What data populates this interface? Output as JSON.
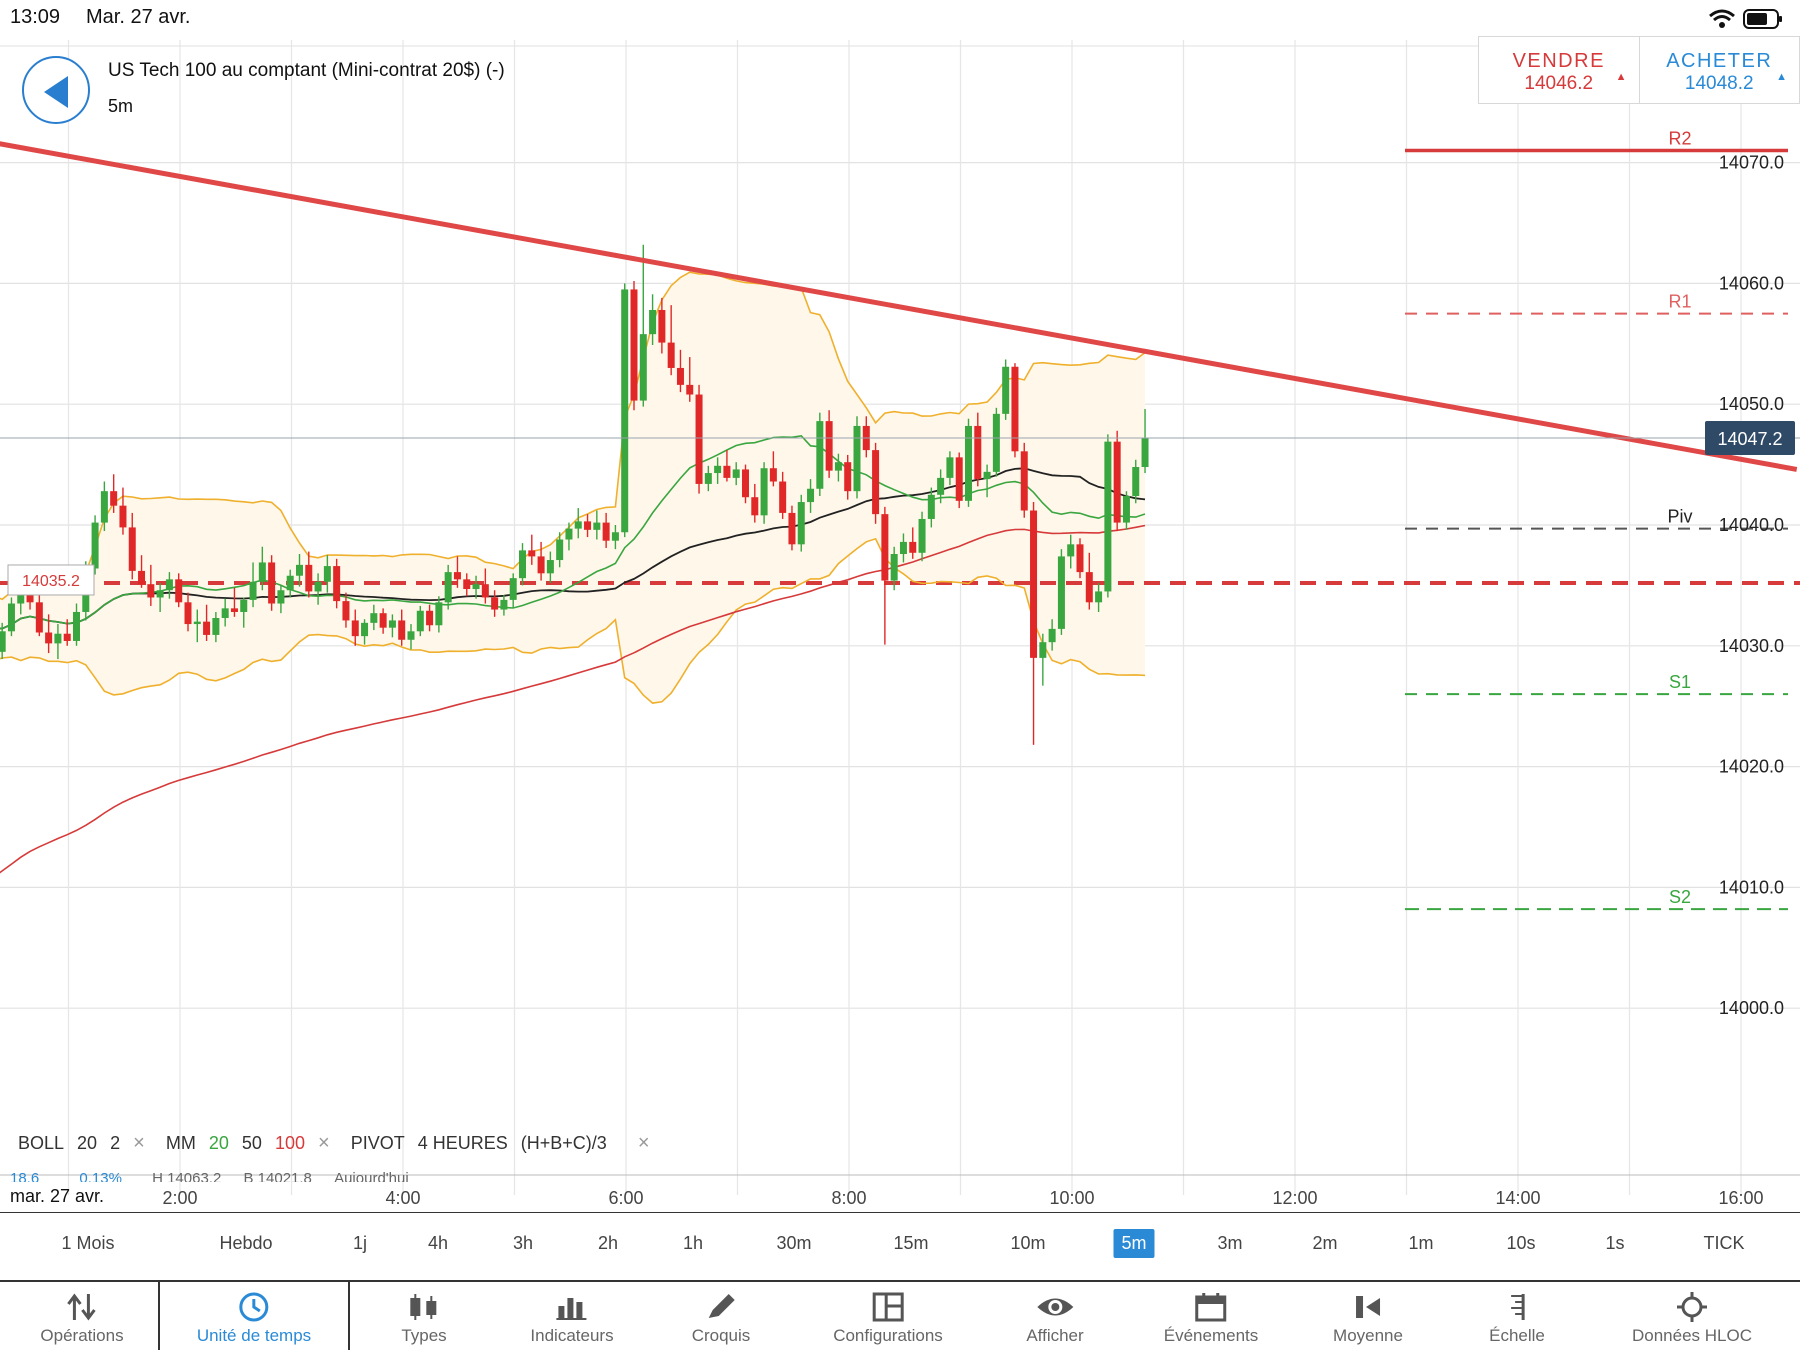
{
  "status_bar": {
    "time": "13:09",
    "date": "Mar. 27 avr."
  },
  "header": {
    "instrument": "US Tech 100 au comptant (Mini-contrat 20$) (-)",
    "timeframe": "5m"
  },
  "trade": {
    "sell_label": "VENDRE",
    "sell_price": "14046.2",
    "buy_label": "ACHETER",
    "buy_price": "14048.2"
  },
  "chart_data": {
    "type": "candlestick",
    "y_ticks": [
      "14070.0",
      "14060.0",
      "14050.0",
      "14040.0",
      "14030.0",
      "14020.0",
      "14010.0",
      "14000.0"
    ],
    "x_ticks": [
      "2:00",
      "4:00",
      "6:00",
      "8:00",
      "10:00",
      "12:00",
      "14:00",
      "16:00"
    ],
    "date_label": "mar. 27 avr.",
    "current_price": "14047.2",
    "current_price_value": 14047.2,
    "horizontal_line_label": "14035.2",
    "horizontal_line_value": 14035.2,
    "pivot_levels": [
      {
        "name": "R2",
        "value": 14071.0,
        "color": "#d63a3a",
        "style": "solid"
      },
      {
        "name": "R1",
        "value": 14057.5,
        "color": "#e06060",
        "style": "dashed"
      },
      {
        "name": "Piv",
        "value": 14039.7,
        "color": "#555555",
        "style": "dashed"
      },
      {
        "name": "S1",
        "value": 14026.0,
        "color": "#3aa640",
        "style": "dashed"
      },
      {
        "name": "S2",
        "value": 14008.2,
        "color": "#3aa640",
        "style": "dashed"
      }
    ],
    "trendline": {
      "from": [
        "0:00",
        14072.2
      ],
      "to": [
        "16:30",
        14044.6
      ],
      "color": "#e04848"
    },
    "candles": [
      [
        14031.2,
        14033.1,
        14029.8,
        14032.4
      ],
      [
        14032.4,
        14034.2,
        14031.0,
        14033.0
      ],
      [
        14033.0,
        14033.8,
        14030.1,
        14031.0
      ],
      [
        14031.0,
        14032.5,
        14028.8,
        14029.5
      ],
      [
        14029.5,
        14031.9,
        14028.9,
        14031.2
      ],
      [
        14031.2,
        14034.0,
        14030.8,
        14033.5
      ],
      [
        14033.5,
        14035.8,
        14032.6,
        14035.2
      ],
      [
        14035.2,
        14036.0,
        14033.0,
        14033.6
      ],
      [
        14033.6,
        14034.2,
        14030.8,
        14031.1
      ],
      [
        14031.1,
        14032.6,
        14029.4,
        14030.2
      ],
      [
        14030.2,
        14031.8,
        14028.9,
        14031.0
      ],
      [
        14031.0,
        14032.2,
        14030.0,
        14030.4
      ],
      [
        14030.4,
        14033.5,
        14030.0,
        14032.8
      ],
      [
        14032.8,
        14037.0,
        14032.1,
        14036.4
      ],
      [
        14036.4,
        14040.8,
        14035.9,
        14040.2
      ],
      [
        14040.2,
        14043.6,
        14039.5,
        14042.8
      ],
      [
        14042.8,
        14044.2,
        14041.0,
        14041.6
      ],
      [
        14041.6,
        14043.1,
        14039.2,
        14039.8
      ],
      [
        14039.8,
        14041.0,
        14035.5,
        14036.2
      ],
      [
        14036.2,
        14037.5,
        14034.8,
        14035.1
      ],
      [
        14035.1,
        14036.7,
        14033.3,
        14034.0
      ],
      [
        14034.0,
        14035.2,
        14032.8,
        14034.6
      ],
      [
        14034.6,
        14036.1,
        14033.9,
        14035.5
      ],
      [
        14035.5,
        14036.0,
        14033.2,
        14033.6
      ],
      [
        14033.6,
        14034.4,
        14031.2,
        14031.8
      ],
      [
        14031.8,
        14033.0,
        14030.3,
        14032.0
      ],
      [
        14032.0,
        14033.4,
        14030.4,
        14030.9
      ],
      [
        14030.9,
        14032.8,
        14030.3,
        14032.3
      ],
      [
        14032.3,
        14033.9,
        14031.6,
        14033.1
      ],
      [
        14033.1,
        14034.8,
        14032.4,
        14032.8
      ],
      [
        14032.8,
        14034.0,
        14031.5,
        14033.8
      ],
      [
        14033.8,
        14036.9,
        14033.2,
        14035.3
      ],
      [
        14035.3,
        14038.2,
        14034.6,
        14036.9
      ],
      [
        14036.9,
        14037.5,
        14032.9,
        14033.5
      ],
      [
        14033.5,
        14035.0,
        14032.7,
        14034.6
      ],
      [
        14034.6,
        14036.3,
        14034.0,
        14035.8
      ],
      [
        14035.8,
        14037.6,
        14034.9,
        14036.7
      ],
      [
        14036.7,
        14037.8,
        14034.0,
        14034.5
      ],
      [
        14034.5,
        14036.0,
        14033.4,
        14035.3
      ],
      [
        14035.3,
        14037.5,
        14034.4,
        14036.6
      ],
      [
        14036.6,
        14037.2,
        14033.1,
        14033.7
      ],
      [
        14033.7,
        14034.4,
        14031.5,
        14032.1
      ],
      [
        14032.1,
        14033.0,
        14030.0,
        14030.8
      ],
      [
        14030.8,
        14032.2,
        14030.1,
        14031.9
      ],
      [
        14031.9,
        14033.4,
        14031.3,
        14032.7
      ],
      [
        14032.7,
        14033.1,
        14031.0,
        14031.5
      ],
      [
        14031.5,
        14032.6,
        14030.7,
        14032.1
      ],
      [
        14032.1,
        14033.0,
        14030.0,
        14030.5
      ],
      [
        14030.5,
        14031.8,
        14029.7,
        14031.2
      ],
      [
        14031.2,
        14033.3,
        14030.8,
        14032.9
      ],
      [
        14032.9,
        14033.4,
        14031.2,
        14031.7
      ],
      [
        14031.7,
        14034.1,
        14031.1,
        14033.6
      ],
      [
        14033.6,
        14036.7,
        14033.0,
        14036.1
      ],
      [
        14036.1,
        14037.4,
        14034.8,
        14035.5
      ],
      [
        14035.5,
        14036.0,
        14034.1,
        14034.7
      ],
      [
        14034.7,
        14035.8,
        14033.9,
        14035.1
      ],
      [
        14035.1,
        14036.4,
        14033.5,
        14034.0
      ],
      [
        14034.0,
        14034.6,
        14032.4,
        14033.0
      ],
      [
        14033.0,
        14034.2,
        14032.5,
        14033.8
      ],
      [
        14033.8,
        14036.0,
        14033.1,
        14035.6
      ],
      [
        14035.6,
        14038.5,
        14035.0,
        14037.9
      ],
      [
        14037.9,
        14039.2,
        14036.7,
        14037.4
      ],
      [
        14037.4,
        14038.6,
        14035.4,
        14036.0
      ],
      [
        14036.0,
        14037.8,
        14035.2,
        14037.1
      ],
      [
        14037.1,
        14039.4,
        14036.5,
        14038.8
      ],
      [
        14038.8,
        14040.2,
        14037.9,
        14039.7
      ],
      [
        14039.7,
        14041.4,
        14038.9,
        14040.3
      ],
      [
        14040.3,
        14040.9,
        14039.0,
        14039.6
      ],
      [
        14039.6,
        14041.2,
        14038.8,
        14040.2
      ],
      [
        14040.2,
        14041.0,
        14038.1,
        14038.7
      ],
      [
        14038.7,
        14040.0,
        14038.0,
        14039.4
      ],
      [
        14039.4,
        14060.0,
        14039.0,
        14059.5
      ],
      [
        14059.5,
        14060.2,
        14049.5,
        14050.3
      ],
      [
        14050.3,
        14063.2,
        14049.8,
        14055.8
      ],
      [
        14055.8,
        14059.1,
        14054.9,
        14057.8
      ],
      [
        14057.8,
        14058.8,
        14054.2,
        14055.1
      ],
      [
        14055.1,
        14058.2,
        14052.4,
        14053.0
      ],
      [
        14053.0,
        14054.5,
        14051.0,
        14051.6
      ],
      [
        14051.6,
        14053.9,
        14050.2,
        14050.8
      ],
      [
        14050.8,
        14051.6,
        14042.6,
        14043.4
      ],
      [
        14043.4,
        14044.9,
        14042.8,
        14044.3
      ],
      [
        14044.3,
        14045.6,
        14043.4,
        14044.9
      ],
      [
        14044.9,
        14046.2,
        14043.6,
        14043.9
      ],
      [
        14043.9,
        14045.2,
        14043.3,
        14044.6
      ],
      [
        14044.6,
        14045.0,
        14041.8,
        14042.3
      ],
      [
        14042.3,
        14043.4,
        14040.2,
        14040.8
      ],
      [
        14040.8,
        14045.2,
        14040.1,
        14044.7
      ],
      [
        14044.7,
        14046.1,
        14043.2,
        14043.6
      ],
      [
        14043.6,
        14044.4,
        14040.5,
        14041.0
      ],
      [
        14041.0,
        14041.6,
        14037.9,
        14038.4
      ],
      [
        14038.4,
        14042.5,
        14037.8,
        14041.9
      ],
      [
        14041.9,
        14043.8,
        14041.0,
        14043.0
      ],
      [
        14043.0,
        14049.3,
        14042.4,
        14048.6
      ],
      [
        14048.6,
        14049.5,
        14043.9,
        14044.5
      ],
      [
        14044.5,
        14045.9,
        14043.6,
        14045.2
      ],
      [
        14045.2,
        14045.8,
        14042.1,
        14042.8
      ],
      [
        14042.8,
        14049.0,
        14042.2,
        14048.2
      ],
      [
        14048.2,
        14049.0,
        14045.6,
        14046.2
      ],
      [
        14046.2,
        14046.8,
        14040.1,
        14040.9
      ],
      [
        14040.9,
        14041.5,
        14030.1,
        14035.4
      ],
      [
        14035.4,
        14038.2,
        14034.6,
        14037.6
      ],
      [
        14037.6,
        14039.3,
        14036.9,
        14038.6
      ],
      [
        14038.6,
        14039.8,
        14037.2,
        14037.7
      ],
      [
        14037.7,
        14041.1,
        14037.0,
        14040.5
      ],
      [
        14040.5,
        14043.1,
        14039.8,
        14042.5
      ],
      [
        14042.5,
        14044.6,
        14041.8,
        14043.9
      ],
      [
        14043.9,
        14046.1,
        14043.3,
        14045.6
      ],
      [
        14045.6,
        14046.0,
        14041.4,
        14042.0
      ],
      [
        14042.0,
        14048.8,
        14041.5,
        14048.2
      ],
      [
        14048.2,
        14049.3,
        14043.2,
        14043.8
      ],
      [
        14043.8,
        14045.0,
        14042.3,
        14044.4
      ],
      [
        14044.4,
        14049.7,
        14044.0,
        14049.2
      ],
      [
        14049.2,
        14053.7,
        14048.7,
        14053.1
      ],
      [
        14053.1,
        14053.4,
        14045.6,
        14046.1
      ],
      [
        14046.1,
        14046.8,
        14040.6,
        14041.2
      ],
      [
        14041.2,
        14041.9,
        14021.8,
        14029.0
      ],
      [
        14029.0,
        14031.0,
        14026.7,
        14030.3
      ],
      [
        14030.3,
        14032.2,
        14029.6,
        14031.4
      ],
      [
        14031.4,
        14038.0,
        14030.9,
        14037.4
      ],
      [
        14037.4,
        14039.2,
        14036.4,
        14038.4
      ],
      [
        14038.4,
        14038.9,
        14035.6,
        14036.1
      ],
      [
        14036.1,
        14037.7,
        14033.0,
        14033.6
      ],
      [
        14033.6,
        14035.2,
        14032.8,
        14034.5
      ],
      [
        14034.5,
        14047.5,
        14034.0,
        14046.9
      ],
      [
        14046.9,
        14047.8,
        14039.5,
        14040.2
      ],
      [
        14040.2,
        14042.8,
        14039.6,
        14042.4
      ],
      [
        14042.4,
        14045.4,
        14041.8,
        14044.8
      ],
      [
        14044.8,
        14049.6,
        14044.3,
        14047.2
      ]
    ],
    "indicator_colors": {
      "bollinger": "#efb02d",
      "bollinger_fill": "#fef7ea",
      "mm20": "#3aa640",
      "mm50": "#222222",
      "mm100": "#d63a3a",
      "bull": "#3aa640",
      "bear": "#e02828"
    }
  },
  "legend": {
    "boll_label": "BOLL",
    "boll_period": "20",
    "boll_dev": "2",
    "mm_label": "MM",
    "mm_20": "20",
    "mm_50": "50",
    "mm_100": "100",
    "pivot_label": "PIVOT",
    "pivot_period": "4 HEURES",
    "pivot_formula": "(H+B+C)/3",
    "sub_change": "18.6",
    "sub_pct": "0.13%",
    "sub_high": "H 14063.2",
    "sub_low": "B 14021.8",
    "sub_today": "Aujourd'hui"
  },
  "periods": {
    "items": [
      "1 Mois",
      "Hebdo",
      "1j",
      "4h",
      "3h",
      "2h",
      "1h",
      "30m",
      "15m",
      "10m",
      "5m",
      "3m",
      "2m",
      "1m",
      "10s",
      "1s",
      "TICK"
    ],
    "selected": "5m"
  },
  "toolbar": {
    "items": [
      "Opérations",
      "Unité de temps",
      "Types",
      "Indicateurs",
      "Croquis",
      "Configurations",
      "Afficher",
      "Événements",
      "Moyenne",
      "Échelle",
      "Données HLOC"
    ],
    "active": "Unité de temps"
  }
}
